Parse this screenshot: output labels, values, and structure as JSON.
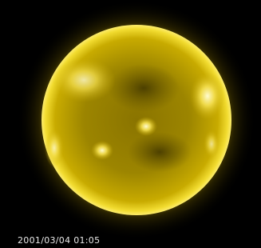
{
  "timestamp": "2001/03/04 01:05"
}
